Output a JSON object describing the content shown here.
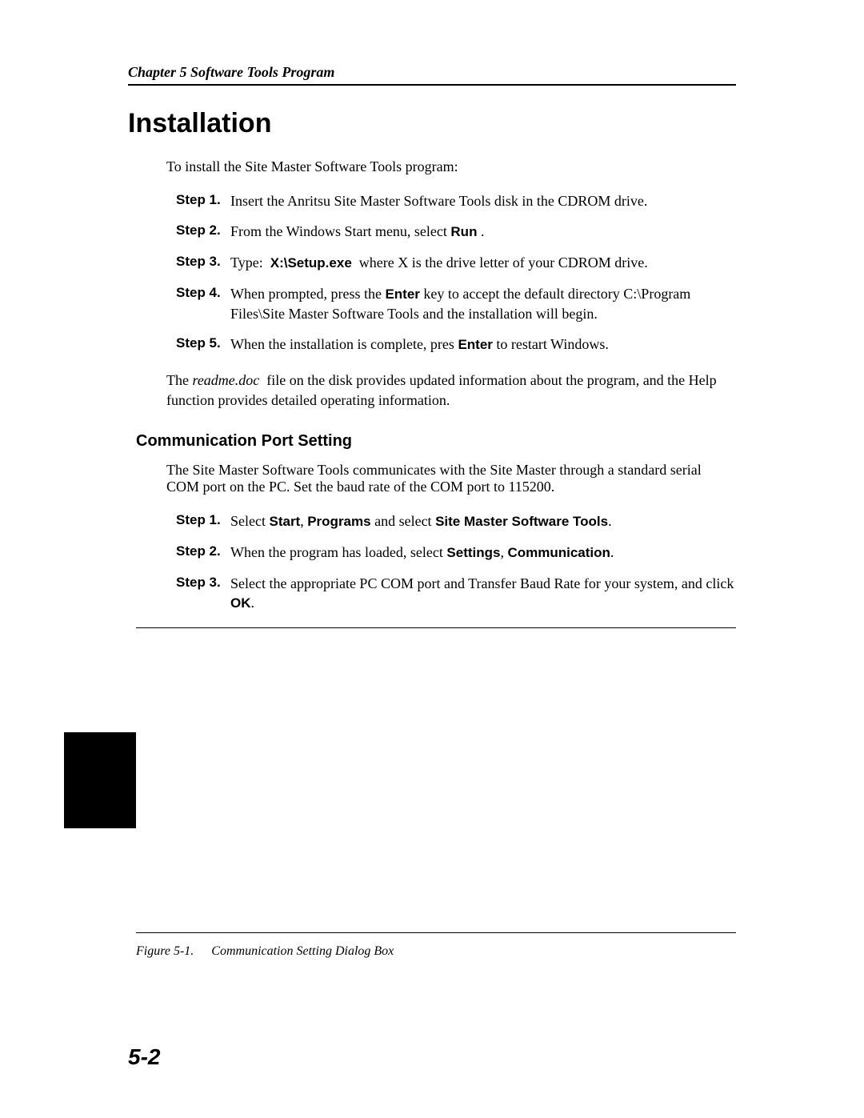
{
  "header": "Chapter 5 Software Tools Program",
  "title": "Installation",
  "intro": "To install the Site Master Software Tools program:",
  "install_steps": [
    {
      "label": "Step 1.",
      "html": "Insert the Anritsu Site Master Software Tools disk in the CDROM drive."
    },
    {
      "label": "Step 2.",
      "html": "From the Windows Start menu, select <span class=\"bold\">Run</span> ."
    },
    {
      "label": "Step 3.",
      "html": "Type:&nbsp; <span class=\"bold\">X:\\Setup.exe</span> &nbsp;where X is the drive letter of your CDROM drive."
    },
    {
      "label": "Step 4.",
      "html": "When prompted, press the <span class=\"bold\">Enter</span> key to accept the default directory C:\\Program Files\\Site Master Software Tools and the installation will begin."
    },
    {
      "label": "Step 5.",
      "html": "When the installation is complete, pres <span class=\"bold\">Enter</span> to restart Windows."
    }
  ],
  "note_html": "The <span class=\"italic\">readme.doc</span>&nbsp; file on the disk provides updated information about the program, and the Help function provides detailed operating information.",
  "subsection_title": "Communication Port Setting",
  "comm_intro": "The Site Master Software Tools communicates with the Site Master through a standard serial COM port on the PC. Set the baud rate of the COM port to 115200.",
  "comm_steps": [
    {
      "label": "Step 1.",
      "html": "Select <span class=\"bold\">Start</span>, <span class=\"bold\">Programs</span> and select <span class=\"bold\">Site Master Software Tools</span>."
    },
    {
      "label": "Step 2.",
      "html": "When the program has loaded, select <span class=\"bold\">Settings</span>, <span class=\"bold\">Communication</span>."
    },
    {
      "label": "Step 3.",
      "html": "Select the appropriate PC COM port and Transfer Baud Rate for your system, and click <span class=\"bold\">OK</span>."
    }
  ],
  "figure_number": "Figure 5-1.",
  "figure_caption": "Communication Setting Dialog Box",
  "page_number": "5-2"
}
